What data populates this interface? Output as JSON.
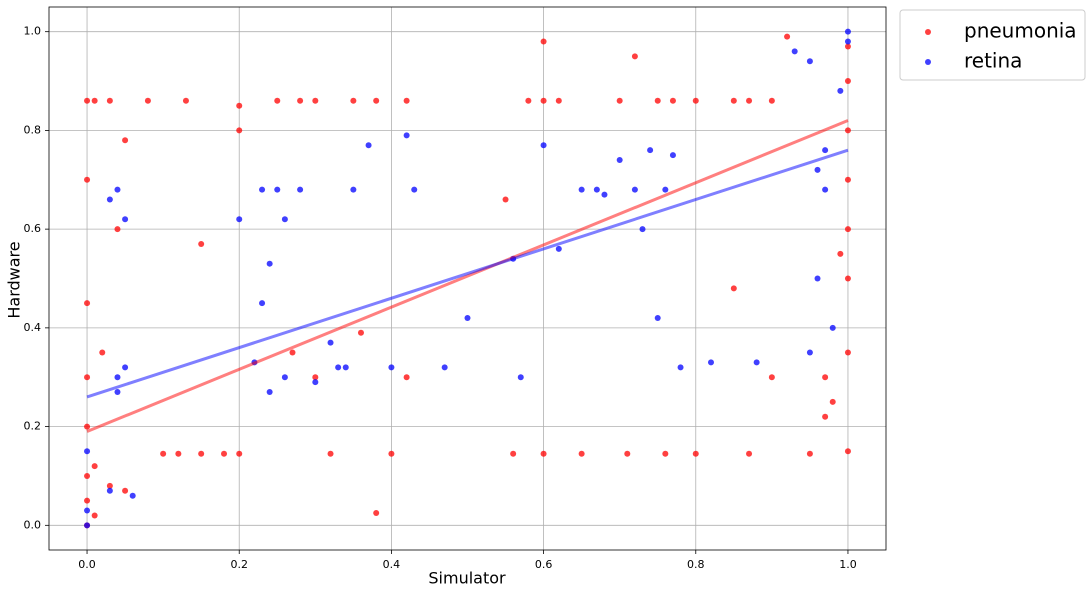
{
  "chart_data": {
    "type": "scatter",
    "x_label": "Simulator",
    "y_label": "Hardware",
    "xlim": [
      -0.05,
      1.05
    ],
    "ylim": [
      -0.05,
      1.05
    ],
    "xticks": [
      {
        "value": 0,
        "label": "0.0"
      },
      0.2,
      0.4,
      0.6,
      0.8,
      {
        "value": 1,
        "label": "1.0"
      }
    ],
    "yticks": [
      {
        "value": 0,
        "label": "0.0"
      },
      0.2,
      0.4,
      0.6,
      0.8,
      {
        "value": 1,
        "label": "1.0"
      }
    ],
    "grid": true,
    "legend": "outside-top-right",
    "series": [
      {
        "name": "pneumonia",
        "color": "#ff0000",
        "x": [
          0,
          0,
          0,
          0,
          0,
          0,
          0,
          0,
          0.01,
          0.01,
          0.02,
          0.03,
          0.04,
          0.05,
          0.08,
          0.13,
          0.2,
          0.25,
          0.28,
          0.3,
          0.35,
          0.38,
          0.42,
          0.58,
          0.6,
          0.62,
          0.7,
          0.75,
          0.77,
          0.8,
          0.85,
          0.87,
          0.9,
          0.92,
          1,
          1,
          1,
          1,
          1,
          1,
          1,
          1,
          0.97,
          0.98,
          0.99,
          0.1,
          0.12,
          0.15,
          0.18,
          0.2,
          0.32,
          0.4,
          0.56,
          0.6,
          0.65,
          0.71,
          0.76,
          0.8,
          0.87,
          0.95,
          0.6,
          0.72,
          0.55,
          0.36,
          0.15,
          0.27,
          0.42,
          0.2,
          0.3,
          0.05,
          0.38,
          0.85,
          0.9,
          0.97,
          0.01,
          0.03
        ],
        "values": [
          0,
          0.05,
          0.1,
          0.2,
          0.3,
          0.45,
          0.7,
          0.86,
          0.86,
          0.12,
          0.35,
          0.86,
          0.6,
          0.07,
          0.86,
          0.86,
          0.85,
          0.86,
          0.86,
          0.86,
          0.86,
          0.86,
          0.86,
          0.86,
          0.86,
          0.86,
          0.86,
          0.86,
          0.86,
          0.86,
          0.86,
          0.86,
          0.86,
          0.99,
          0.97,
          0.9,
          0.8,
          0.7,
          0.6,
          0.5,
          0.35,
          0.15,
          0.3,
          0.25,
          0.55,
          0.145,
          0.145,
          0.145,
          0.145,
          0.145,
          0.145,
          0.145,
          0.145,
          0.145,
          0.145,
          0.145,
          0.145,
          0.145,
          0.145,
          0.145,
          0.98,
          0.95,
          0.66,
          0.39,
          0.57,
          0.35,
          0.3,
          0.8,
          0.3,
          0.78,
          0.025,
          0.48,
          0.3,
          0.22,
          0.02,
          0.08
        ],
        "trend": {
          "x": [
            0,
            1
          ],
          "values": [
            0.19,
            0.82
          ]
        }
      },
      {
        "name": "retina",
        "color": "#0000ff",
        "x": [
          0,
          0,
          0,
          0.03,
          0.04,
          0.04,
          0.05,
          0.04,
          0.03,
          0.05,
          0.06,
          0.22,
          0.23,
          0.25,
          0.26,
          0.24,
          0.23,
          0.26,
          0.28,
          0.32,
          0.33,
          0.34,
          0.35,
          0.37,
          0.4,
          0.43,
          0.47,
          0.5,
          0.56,
          0.6,
          0.62,
          0.65,
          0.67,
          0.68,
          0.7,
          0.72,
          0.74,
          0.76,
          0.78,
          0.75,
          0.73,
          0.77,
          0.82,
          0.88,
          0.93,
          0.95,
          0.96,
          0.97,
          0.98,
          1,
          1,
          0.99,
          0.95,
          0.97,
          0.96,
          0.42,
          0.24,
          0.3,
          0.2,
          0.57
        ],
        "values": [
          0,
          0.03,
          0.15,
          0.07,
          0.3,
          0.27,
          0.32,
          0.68,
          0.66,
          0.62,
          0.06,
          0.33,
          0.68,
          0.68,
          0.3,
          0.27,
          0.45,
          0.62,
          0.68,
          0.37,
          0.32,
          0.32,
          0.68,
          0.77,
          0.32,
          0.68,
          0.32,
          0.42,
          0.54,
          0.77,
          0.56,
          0.68,
          0.68,
          0.67,
          0.74,
          0.68,
          0.76,
          0.68,
          0.32,
          0.42,
          0.6,
          0.75,
          0.33,
          0.33,
          0.96,
          0.94,
          0.72,
          0.68,
          0.4,
          1,
          0.98,
          0.88,
          0.35,
          0.76,
          0.5,
          0.79,
          0.53,
          0.29,
          0.62,
          0.3
        ],
        "trend": {
          "x": [
            0,
            1
          ],
          "values": [
            0.26,
            0.76
          ]
        }
      }
    ]
  }
}
